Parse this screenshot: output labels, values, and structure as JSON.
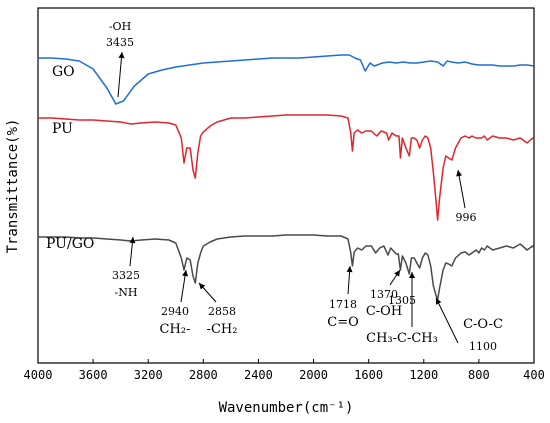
{
  "chart_data": {
    "type": "line",
    "xlabel": "Wavenumber(cm⁻¹)",
    "ylabel": "Transmittance(%)",
    "xlim": [
      4000,
      400
    ],
    "x_reversed": true,
    "xticks": [
      4000,
      3600,
      3200,
      2800,
      2400,
      2000,
      1600,
      1200,
      800,
      400
    ],
    "grid": false,
    "legend": "none",
    "series": [
      {
        "name": "GO",
        "color": "#1f6fd6",
        "offset": 50,
        "points": [
          [
            4000,
            50
          ],
          [
            3900,
            50
          ],
          [
            3800,
            51
          ],
          [
            3700,
            53
          ],
          [
            3600,
            61
          ],
          [
            3500,
            80
          ],
          [
            3435,
            96
          ],
          [
            3380,
            93
          ],
          [
            3300,
            78
          ],
          [
            3200,
            66
          ],
          [
            3100,
            62
          ],
          [
            3000,
            59
          ],
          [
            2900,
            57
          ],
          [
            2800,
            55
          ],
          [
            2700,
            54
          ],
          [
            2600,
            53
          ],
          [
            2500,
            52
          ],
          [
            2400,
            51
          ],
          [
            2300,
            50
          ],
          [
            2200,
            50
          ],
          [
            2100,
            50
          ],
          [
            2000,
            49
          ],
          [
            1900,
            48
          ],
          [
            1800,
            47
          ],
          [
            1740,
            47
          ],
          [
            1700,
            50
          ],
          [
            1660,
            52
          ],
          [
            1625,
            63
          ],
          [
            1590,
            55
          ],
          [
            1560,
            58
          ],
          [
            1500,
            55
          ],
          [
            1450,
            54
          ],
          [
            1400,
            55
          ],
          [
            1350,
            54
          ],
          [
            1300,
            55
          ],
          [
            1250,
            55
          ],
          [
            1200,
            54
          ],
          [
            1150,
            53
          ],
          [
            1100,
            54
          ],
          [
            1060,
            58
          ],
          [
            1030,
            53
          ],
          [
            1000,
            54
          ],
          [
            950,
            55
          ],
          [
            900,
            54
          ],
          [
            850,
            56
          ],
          [
            800,
            57
          ],
          [
            750,
            57
          ],
          [
            700,
            57
          ],
          [
            650,
            58
          ],
          [
            600,
            58
          ],
          [
            550,
            58
          ],
          [
            500,
            57
          ],
          [
            450,
            57
          ],
          [
            400,
            58
          ]
        ]
      },
      {
        "name": "PU",
        "color": "#e0262d",
        "offset": 110,
        "points": [
          [
            4000,
            110
          ],
          [
            3900,
            110
          ],
          [
            3800,
            111
          ],
          [
            3700,
            112
          ],
          [
            3600,
            112
          ],
          [
            3500,
            113
          ],
          [
            3400,
            114
          ],
          [
            3325,
            116
          ],
          [
            3250,
            115
          ],
          [
            3150,
            114
          ],
          [
            3050,
            115
          ],
          [
            3000,
            117
          ],
          [
            2960,
            130
          ],
          [
            2940,
            155
          ],
          [
            2920,
            140
          ],
          [
            2895,
            140
          ],
          [
            2875,
            162
          ],
          [
            2858,
            170
          ],
          [
            2840,
            145
          ],
          [
            2820,
            128
          ],
          [
            2800,
            124
          ],
          [
            2750,
            118
          ],
          [
            2700,
            114
          ],
          [
            2600,
            110
          ],
          [
            2500,
            110
          ],
          [
            2400,
            109
          ],
          [
            2300,
            108
          ],
          [
            2200,
            107
          ],
          [
            2100,
            107
          ],
          [
            2000,
            107
          ],
          [
            1900,
            107
          ],
          [
            1800,
            108
          ],
          [
            1750,
            110
          ],
          [
            1730,
            125
          ],
          [
            1718,
            143
          ],
          [
            1705,
            125
          ],
          [
            1680,
            122
          ],
          [
            1650,
            125
          ],
          [
            1620,
            123
          ],
          [
            1580,
            123
          ],
          [
            1540,
            128
          ],
          [
            1510,
            123
          ],
          [
            1470,
            125
          ],
          [
            1455,
            132
          ],
          [
            1430,
            125
          ],
          [
            1400,
            128
          ],
          [
            1380,
            128
          ],
          [
            1370,
            150
          ],
          [
            1355,
            130
          ],
          [
            1330,
            140
          ],
          [
            1305,
            148
          ],
          [
            1290,
            130
          ],
          [
            1270,
            130
          ],
          [
            1250,
            132
          ],
          [
            1230,
            140
          ],
          [
            1210,
            132
          ],
          [
            1190,
            128
          ],
          [
            1170,
            130
          ],
          [
            1150,
            140
          ],
          [
            1130,
            165
          ],
          [
            1110,
            195
          ],
          [
            1100,
            212
          ],
          [
            1085,
            190
          ],
          [
            1060,
            160
          ],
          [
            1040,
            148
          ],
          [
            1020,
            150
          ],
          [
            996,
            152
          ],
          [
            970,
            140
          ],
          [
            930,
            130
          ],
          [
            900,
            128
          ],
          [
            870,
            130
          ],
          [
            850,
            128
          ],
          [
            820,
            130
          ],
          [
            800,
            130
          ],
          [
            780,
            130
          ],
          [
            760,
            128
          ],
          [
            740,
            132
          ],
          [
            700,
            128
          ],
          [
            650,
            130
          ],
          [
            600,
            130
          ],
          [
            550,
            132
          ],
          [
            500,
            130
          ],
          [
            450,
            135
          ],
          [
            410,
            130
          ],
          [
            400,
            132
          ]
        ]
      },
      {
        "name": "PU/GO",
        "color": "#4a4a4a",
        "offset": 230,
        "points": [
          [
            4000,
            229
          ],
          [
            3900,
            229
          ],
          [
            3800,
            229
          ],
          [
            3700,
            230
          ],
          [
            3600,
            230
          ],
          [
            3500,
            231
          ],
          [
            3400,
            232
          ],
          [
            3325,
            233
          ],
          [
            3250,
            232
          ],
          [
            3150,
            231
          ],
          [
            3050,
            232
          ],
          [
            3000,
            235
          ],
          [
            2960,
            250
          ],
          [
            2940,
            262
          ],
          [
            2920,
            250
          ],
          [
            2895,
            252
          ],
          [
            2875,
            268
          ],
          [
            2858,
            275
          ],
          [
            2840,
            255
          ],
          [
            2820,
            245
          ],
          [
            2800,
            238
          ],
          [
            2750,
            234
          ],
          [
            2700,
            231
          ],
          [
            2600,
            229
          ],
          [
            2500,
            228
          ],
          [
            2400,
            228
          ],
          [
            2300,
            228
          ],
          [
            2200,
            227
          ],
          [
            2100,
            227
          ],
          [
            2000,
            227
          ],
          [
            1900,
            228
          ],
          [
            1800,
            228
          ],
          [
            1750,
            231
          ],
          [
            1730,
            245
          ],
          [
            1718,
            258
          ],
          [
            1705,
            244
          ],
          [
            1680,
            240
          ],
          [
            1650,
            242
          ],
          [
            1620,
            238
          ],
          [
            1580,
            238
          ],
          [
            1550,
            245
          ],
          [
            1520,
            240
          ],
          [
            1490,
            238
          ],
          [
            1460,
            247
          ],
          [
            1440,
            240
          ],
          [
            1420,
            243
          ],
          [
            1400,
            246
          ],
          [
            1385,
            246
          ],
          [
            1370,
            262
          ],
          [
            1355,
            248
          ],
          [
            1330,
            255
          ],
          [
            1305,
            266
          ],
          [
            1290,
            250
          ],
          [
            1270,
            250
          ],
          [
            1250,
            255
          ],
          [
            1230,
            260
          ],
          [
            1210,
            250
          ],
          [
            1190,
            245
          ],
          [
            1170,
            247
          ],
          [
            1150,
            258
          ],
          [
            1130,
            278
          ],
          [
            1110,
            288
          ],
          [
            1100,
            292
          ],
          [
            1085,
            280
          ],
          [
            1060,
            262
          ],
          [
            1040,
            255
          ],
          [
            1020,
            256
          ],
          [
            996,
            258
          ],
          [
            970,
            250
          ],
          [
            930,
            245
          ],
          [
            900,
            244
          ],
          [
            870,
            247
          ],
          [
            850,
            245
          ],
          [
            820,
            242
          ],
          [
            800,
            245
          ],
          [
            780,
            240
          ],
          [
            760,
            242
          ],
          [
            740,
            238
          ],
          [
            700,
            242
          ],
          [
            650,
            240
          ],
          [
            600,
            238
          ],
          [
            550,
            240
          ],
          [
            500,
            236
          ],
          [
            450,
            242
          ],
          [
            410,
            238
          ],
          [
            400,
            240
          ]
        ]
      }
    ],
    "annotations": [
      {
        "lines": [
          "-OH",
          "3435"
        ]
      },
      {
        "lines": [
          "996"
        ]
      },
      {
        "lines": [
          "3325",
          "-NH"
        ]
      },
      {
        "lines": [
          "2940",
          "CH₂-"
        ]
      },
      {
        "lines": [
          "2858",
          "-CH₂"
        ]
      },
      {
        "lines": [
          "1718",
          "C=O"
        ]
      },
      {
        "lines": [
          "1370",
          "C-OH"
        ]
      },
      {
        "lines": [
          "1305",
          "CH₃-C-CH₃"
        ]
      },
      {
        "lines": [
          "C-O-C",
          "1100"
        ]
      }
    ]
  }
}
